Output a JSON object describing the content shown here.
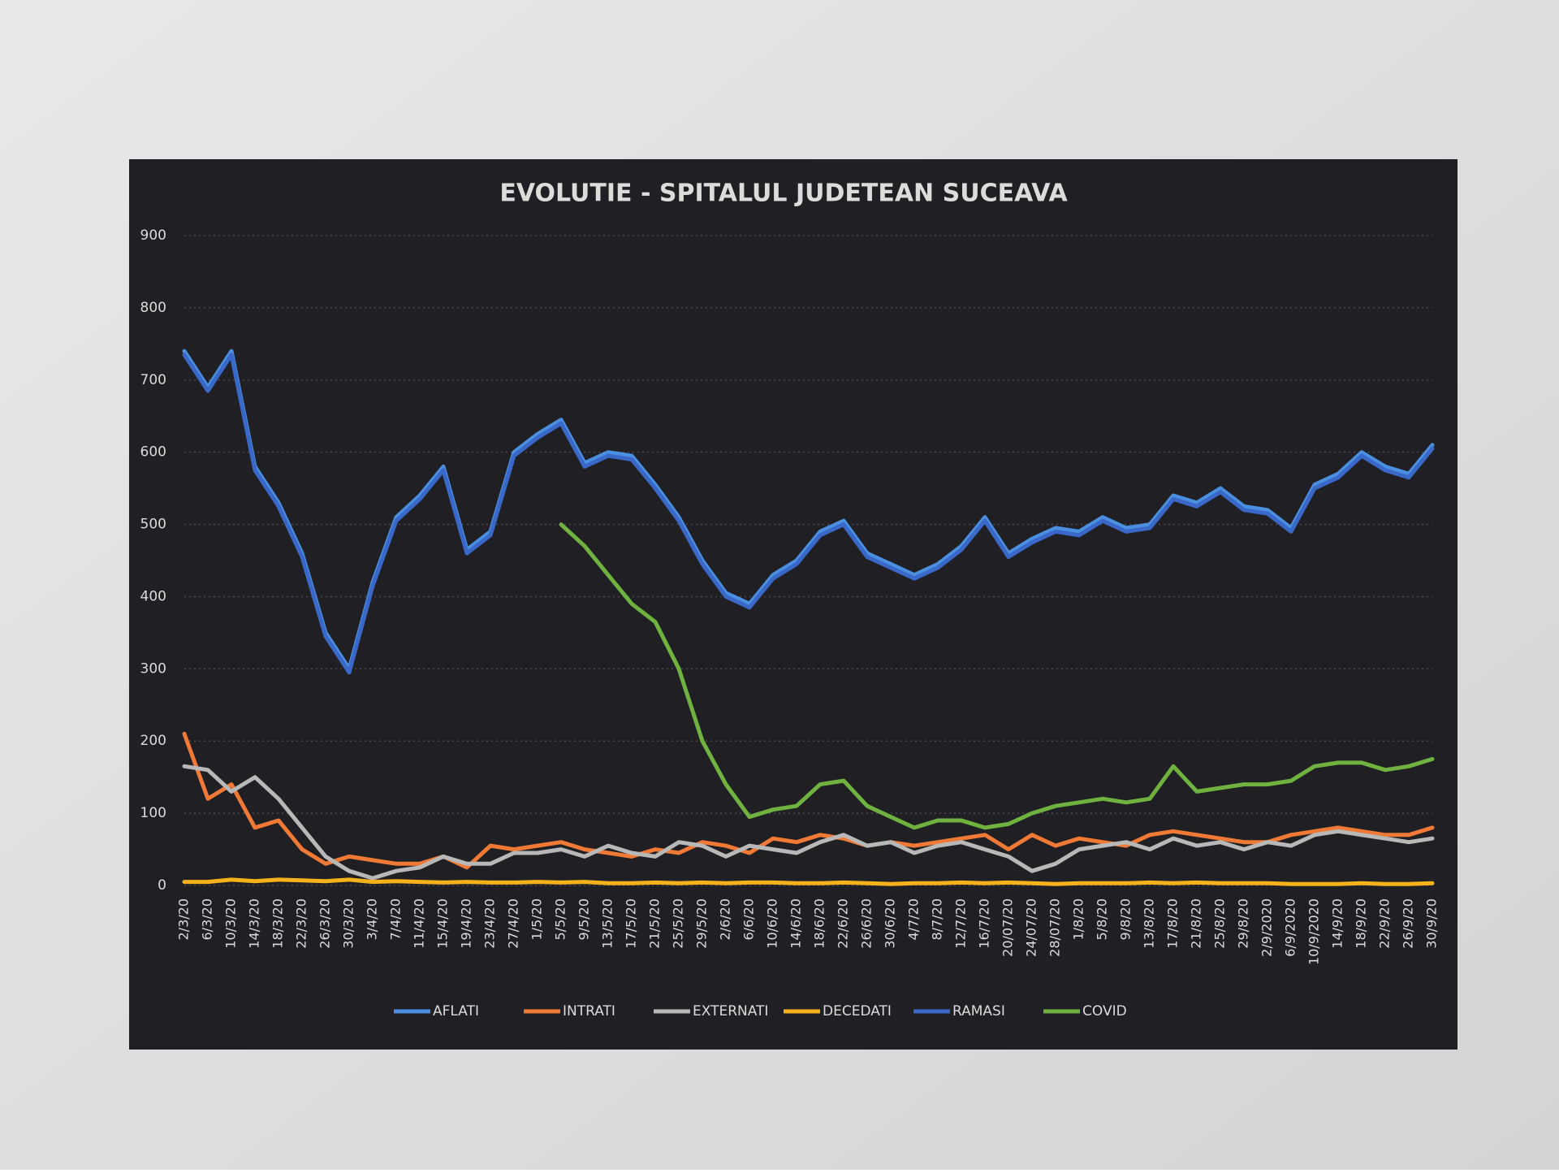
{
  "chart_data": {
    "type": "line",
    "title": "EVOLUTIE - SPITALUL JUDETEAN SUCEAVA",
    "categories": [
      "2/3/20",
      "6/3/20",
      "10/3/20",
      "14/3/20",
      "18/3/20",
      "22/3/20",
      "26/3/20",
      "30/3/20",
      "3/4/20",
      "7/4/20",
      "11/4/20",
      "15/4/20",
      "19/4/20",
      "23/4/20",
      "27/4/20",
      "1/5/20",
      "5/5/20",
      "9/5/20",
      "13/5/20",
      "17/5/20",
      "21/5/20",
      "25/5/20",
      "29/5/20",
      "2/6/20",
      "6/6/20",
      "10/6/20",
      "14/6/20",
      "18/6/20",
      "22/6/20",
      "26/6/20",
      "30/6/20",
      "4/7/20",
      "8/7/20",
      "12/7/20",
      "16/7/20",
      "20/07/20",
      "24/07/20",
      "28/07/20",
      "1/8/20",
      "5/8/20",
      "9/8/20",
      "13/8/20",
      "17/8/20",
      "21/8/20",
      "25/8/20",
      "29/8/20",
      "2/9/2020",
      "6/9/2020",
      "10/9/2020",
      "14/9/20",
      "18/9/20",
      "22/9/20",
      "26/9/20",
      "30/9/20"
    ],
    "series": [
      {
        "name": "AFLATI",
        "color": "#4a8fe0",
        "values": [
          740,
          690,
          740,
          580,
          530,
          460,
          350,
          300,
          420,
          510,
          540,
          580,
          465,
          490,
          600,
          625,
          645,
          585,
          600,
          595,
          555,
          510,
          450,
          405,
          390,
          430,
          450,
          490,
          505,
          460,
          445,
          430,
          445,
          470,
          510,
          460,
          480,
          495,
          490,
          510,
          495,
          500,
          540,
          530,
          550,
          525,
          520,
          495,
          555,
          570,
          600,
          580,
          570,
          610
        ]
      },
      {
        "name": "INTRATI",
        "color": "#f07a35",
        "values": [
          210,
          120,
          140,
          80,
          90,
          50,
          30,
          40,
          35,
          30,
          30,
          40,
          25,
          55,
          50,
          55,
          60,
          50,
          45,
          40,
          50,
          45,
          60,
          55,
          45,
          65,
          60,
          70,
          65,
          55,
          60,
          55,
          60,
          65,
          70,
          50,
          70,
          55,
          65,
          60,
          55,
          70,
          75,
          70,
          65,
          60,
          60,
          70,
          75,
          80,
          75,
          70,
          70,
          80
        ]
      },
      {
        "name": "EXTERNATI",
        "color": "#b8b8b8",
        "values": [
          165,
          160,
          130,
          150,
          120,
          80,
          40,
          20,
          10,
          20,
          25,
          40,
          30,
          30,
          45,
          45,
          50,
          40,
          55,
          45,
          40,
          60,
          55,
          40,
          55,
          50,
          45,
          60,
          70,
          55,
          60,
          45,
          55,
          60,
          50,
          40,
          20,
          30,
          50,
          55,
          60,
          50,
          65,
          55,
          60,
          50,
          60,
          55,
          70,
          75,
          70,
          65,
          60,
          65
        ]
      },
      {
        "name": "DECEDATI",
        "color": "#f5b21a",
        "values": [
          5,
          5,
          8,
          6,
          8,
          7,
          6,
          8,
          5,
          6,
          5,
          4,
          5,
          4,
          4,
          5,
          4,
          5,
          3,
          3,
          4,
          3,
          4,
          3,
          4,
          4,
          3,
          3,
          4,
          3,
          2,
          3,
          3,
          4,
          3,
          4,
          3,
          2,
          3,
          3,
          3,
          4,
          3,
          4,
          3,
          3,
          3,
          2,
          2,
          2,
          3,
          2,
          2,
          3
        ]
      },
      {
        "name": "RAMASI",
        "color": "#3a68c8",
        "values": [
          735,
          685,
          735,
          575,
          525,
          455,
          345,
          295,
          415,
          505,
          535,
          575,
          460,
          485,
          595,
          620,
          640,
          580,
          595,
          590,
          550,
          505,
          445,
          400,
          385,
          425,
          445,
          485,
          500,
          455,
          440,
          425,
          440,
          465,
          505,
          455,
          475,
          490,
          485,
          505,
          490,
          495,
          535,
          525,
          545,
          520,
          515,
          490,
          550,
          565,
          595,
          575,
          565,
          605
        ]
      },
      {
        "name": "COVID",
        "color": "#6fb23f",
        "values": [
          null,
          null,
          null,
          null,
          null,
          null,
          null,
          null,
          null,
          null,
          null,
          null,
          null,
          null,
          null,
          null,
          500,
          470,
          430,
          390,
          365,
          300,
          200,
          140,
          95,
          105,
          110,
          140,
          145,
          110,
          95,
          80,
          90,
          90,
          80,
          85,
          100,
          110,
          115,
          120,
          115,
          120,
          165,
          130,
          135,
          140,
          140,
          145,
          165,
          170,
          170,
          160,
          165,
          175
        ]
      }
    ],
    "ylim": [
      0,
      900
    ],
    "yticks": [
      0,
      100,
      200,
      300,
      400,
      500,
      600,
      700,
      800,
      900
    ],
    "grid": true,
    "legend": "bottom"
  }
}
